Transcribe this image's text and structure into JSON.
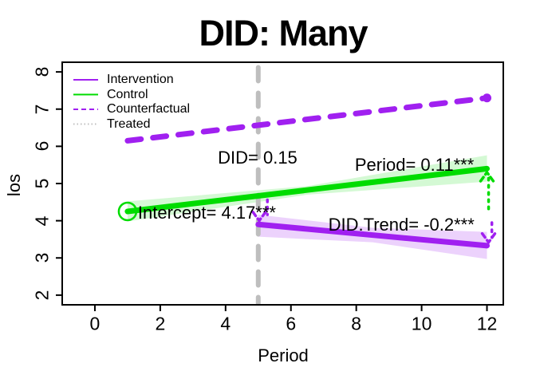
{
  "title": "DID: Many",
  "axes": {
    "x": {
      "label": "Period",
      "ticks": [
        0,
        2,
        4,
        6,
        8,
        10,
        12
      ]
    },
    "y": {
      "label": "los",
      "ticks": [
        2,
        3,
        4,
        5,
        6,
        7,
        8
      ]
    }
  },
  "legend": {
    "items": [
      {
        "label": "Intervention",
        "color": "#A020F0",
        "dash": "solid"
      },
      {
        "label": "Control",
        "color": "#00DC00",
        "dash": "solid"
      },
      {
        "label": "Counterfactual",
        "color": "#A020F0",
        "dash": "dashed"
      },
      {
        "label": "Treated",
        "color": "#BFBFBF",
        "dash": "dotted"
      }
    ]
  },
  "chart_data": {
    "type": "line",
    "title": "DID: Many",
    "xlabel": "Period",
    "ylabel": "los",
    "xlim": [
      -1.0,
      12.5
    ],
    "ylim": [
      1.74,
      8.26
    ],
    "grid": false,
    "legend_position": "top-left",
    "series": [
      {
        "name": "Treated",
        "color": "#BEBEBE",
        "style": "dashed-thick",
        "width": 6,
        "points": [
          [
            5,
            8.12
          ],
          [
            5,
            1.78
          ]
        ]
      },
      {
        "name": "Counterfactual",
        "color": "#A020F0",
        "style": "dashed-thick",
        "width": 7,
        "points": [
          [
            1,
            6.15
          ],
          [
            12,
            7.3
          ]
        ],
        "end_marker": "dot"
      },
      {
        "name": "Control",
        "color": "#00DC00",
        "style": "solid",
        "width": 7,
        "points": [
          [
            1,
            4.25
          ],
          [
            12,
            5.4
          ]
        ],
        "start_marker": "open-circle",
        "band": [
          [
            1,
            4.52
          ],
          [
            6.5,
            4.93
          ],
          [
            12,
            5.76
          ],
          [
            12,
            5.05
          ],
          [
            6.5,
            4.7
          ],
          [
            1,
            3.98
          ]
        ],
        "band_fill": "rgba(0,220,0,0.17)"
      },
      {
        "name": "Intervention",
        "color": "#A020F0",
        "style": "solid",
        "width": 7,
        "points": [
          [
            5,
            3.9
          ],
          [
            12,
            3.33
          ]
        ],
        "band": [
          [
            5,
            4.16
          ],
          [
            8.5,
            3.81
          ],
          [
            12,
            3.7
          ],
          [
            12,
            2.97
          ],
          [
            8.5,
            3.42
          ],
          [
            5,
            3.57
          ]
        ],
        "band_fill": "rgba(160,32,240,0.20)"
      }
    ],
    "annotations": [
      {
        "text": "DID= 0.15",
        "x": 4.98,
        "y": 5.69
      },
      {
        "text": "Period= 0.11***",
        "x": 9.78,
        "y": 5.5
      },
      {
        "text": "Intercept= 4.17***",
        "x": 3.43,
        "y": 4.21
      },
      {
        "text": "DID.Trend= -0.2***",
        "x": 9.38,
        "y": 3.88
      }
    ],
    "arrows": [
      {
        "color": "#00DC00",
        "line": [
          [
            12.05,
            4.32
          ],
          [
            12.05,
            5.18
          ]
        ],
        "apex": [
          12.0,
          5.3
        ],
        "dir": "up"
      },
      {
        "color": "#A020F0",
        "line": [
          [
            12.15,
            3.95
          ],
          [
            12.15,
            3.55
          ]
        ],
        "apex": [
          12.05,
          3.42
        ],
        "dir": "down"
      },
      {
        "color": "#A020F0",
        "line": [
          [
            5.28,
            4.56
          ],
          [
            5.28,
            4.16
          ]
        ],
        "apex": [
          5.03,
          4.0
        ],
        "dir": "down"
      }
    ],
    "stats": {
      "DID": 0.15,
      "Period": 0.11,
      "Intercept": 4.17,
      "DID_Trend": -0.2
    }
  }
}
